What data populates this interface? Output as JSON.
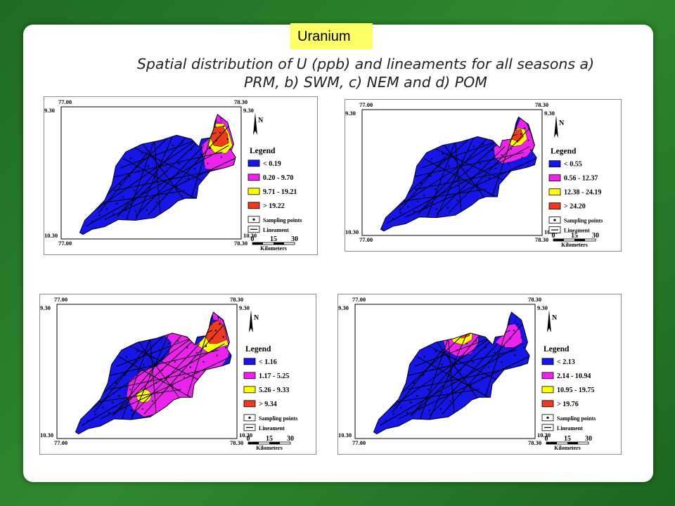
{
  "badge": "Uranium",
  "title_line1": "Spatial distribution of U (ppb) and lineaments for all seasons a)",
  "title_line2": "PRM, b) SWM, c) NEM and d) POM",
  "colors": {
    "blue": "#1616e8",
    "magenta": "#ee22ee",
    "yellow": "#ffff00",
    "red": "#ee3b1e",
    "background": "#2f8a2f"
  },
  "map_common": {
    "lon_left": "77.00",
    "lon_right": "78.30",
    "lat_top": "9.30",
    "lat_bottom": "10.30",
    "legend_title": "Legend",
    "sampling_points": "Sampling points",
    "lineament": "Lineament",
    "scale_0": "0",
    "scale_15": "15",
    "scale_30": "30",
    "scale_unit": "Kilometers",
    "north": "N"
  },
  "maps": [
    {
      "id": "a",
      "classes": [
        "< 0.19",
        "0.20 - 9.70",
        "9.71 - 19.21",
        "> 19.22"
      ]
    },
    {
      "id": "b",
      "classes": [
        "< 0.55",
        "0.56 - 12.37",
        "12.38 - 24.19",
        "> 24.20"
      ]
    },
    {
      "id": "c",
      "classes": [
        "< 1.16",
        "1.17 - 5.25",
        "5.26 - 9.33",
        "> 9.34"
      ]
    },
    {
      "id": "d",
      "classes": [
        "< 2.13",
        "2.14 - 10.94",
        "10.95 - 19.75",
        "> 19.76"
      ]
    }
  ]
}
